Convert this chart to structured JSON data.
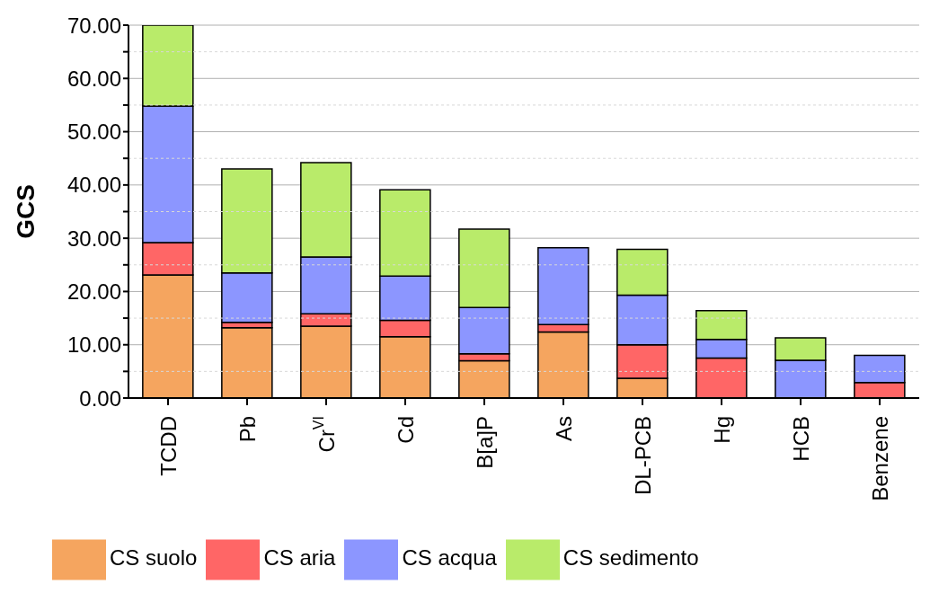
{
  "chart_data": {
    "type": "bar",
    "stacked": true,
    "ylabel": "GCS",
    "categories": [
      "TCDD",
      "Pb",
      "Cr$^{VI}$",
      "Cd",
      "B[a]P",
      "As",
      "DL-PCB",
      "Hg",
      "HCB",
      "Benzene"
    ],
    "series": [
      {
        "name": "CS suolo",
        "color": "#f5a55f",
        "values": [
          23.1,
          13.2,
          13.5,
          11.5,
          7.0,
          12.4,
          3.7,
          0,
          0,
          0
        ]
      },
      {
        "name": "CS aria",
        "color": "#ff6666",
        "values": [
          6.1,
          1.0,
          2.3,
          3.1,
          1.3,
          1.4,
          6.3,
          7.5,
          0,
          2.9
        ]
      },
      {
        "name": "CS acqua",
        "color": "#8c96ff",
        "values": [
          25.6,
          9.3,
          10.7,
          8.3,
          8.7,
          14.4,
          9.3,
          3.5,
          7.1,
          5.1
        ]
      },
      {
        "name": "CS sedimento",
        "color": "#b9eb6a",
        "values": [
          15.2,
          19.5,
          17.7,
          16.2,
          14.7,
          0,
          8.6,
          5.4,
          4.2,
          0
        ]
      }
    ],
    "ylim": [
      0,
      70
    ],
    "yticks": [
      {
        "value": 0,
        "label": "0.00"
      },
      {
        "value": 5,
        "label": null
      },
      {
        "value": 10,
        "label": "10.00"
      },
      {
        "value": 15,
        "label": null
      },
      {
        "value": 20,
        "label": "20.00"
      },
      {
        "value": 25,
        "label": null
      },
      {
        "value": 30,
        "label": "30.00"
      },
      {
        "value": 35,
        "label": null
      },
      {
        "value": 40,
        "label": "40.00"
      },
      {
        "value": 45,
        "label": null
      },
      {
        "value": 50,
        "label": "50.00"
      },
      {
        "value": 55,
        "label": null
      },
      {
        "value": 60,
        "label": "60.00"
      },
      {
        "value": 65,
        "label": null
      },
      {
        "value": 70,
        "label": "70.00"
      }
    ],
    "grid": "y",
    "legend": "bottom"
  }
}
